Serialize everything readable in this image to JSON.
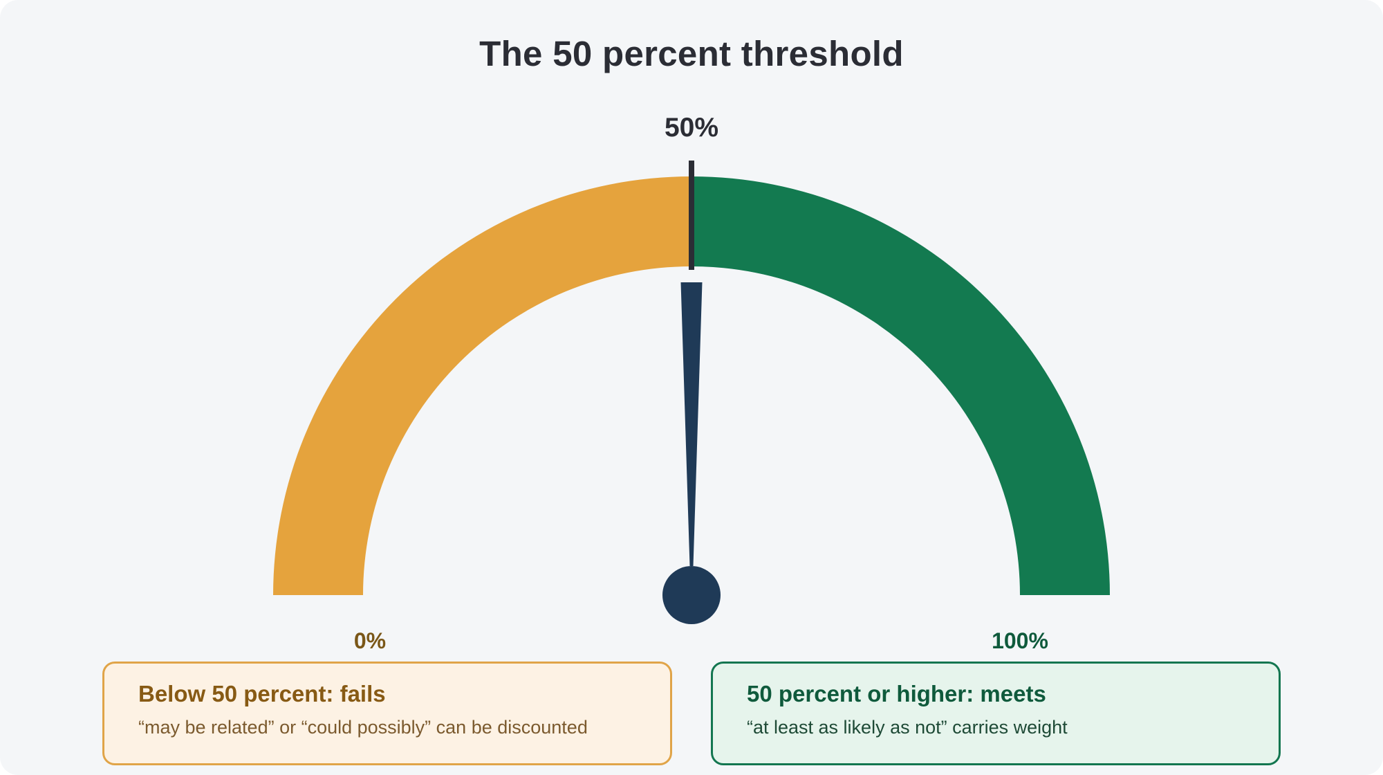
{
  "title": "The 50 percent threshold",
  "gauge": {
    "threshold_label": "50%",
    "min_label": "0%",
    "max_label": "100%",
    "needle_value_percent": 50,
    "threshold_value_percent": 50,
    "colors": {
      "below": "#e5a33d",
      "meets": "#137a50",
      "needle": "#1f3a57",
      "threshold_tick": "#2b2d35",
      "min_label": "#7a5718",
      "max_label": "#0f5a3c"
    }
  },
  "cards": {
    "below": {
      "title": "Below 50 percent: fails",
      "description": "“may be related” or “could possibly” can be discounted"
    },
    "meets": {
      "title": "50 percent or higher: meets",
      "description": "“at least as likely as not” carries weight"
    }
  }
}
